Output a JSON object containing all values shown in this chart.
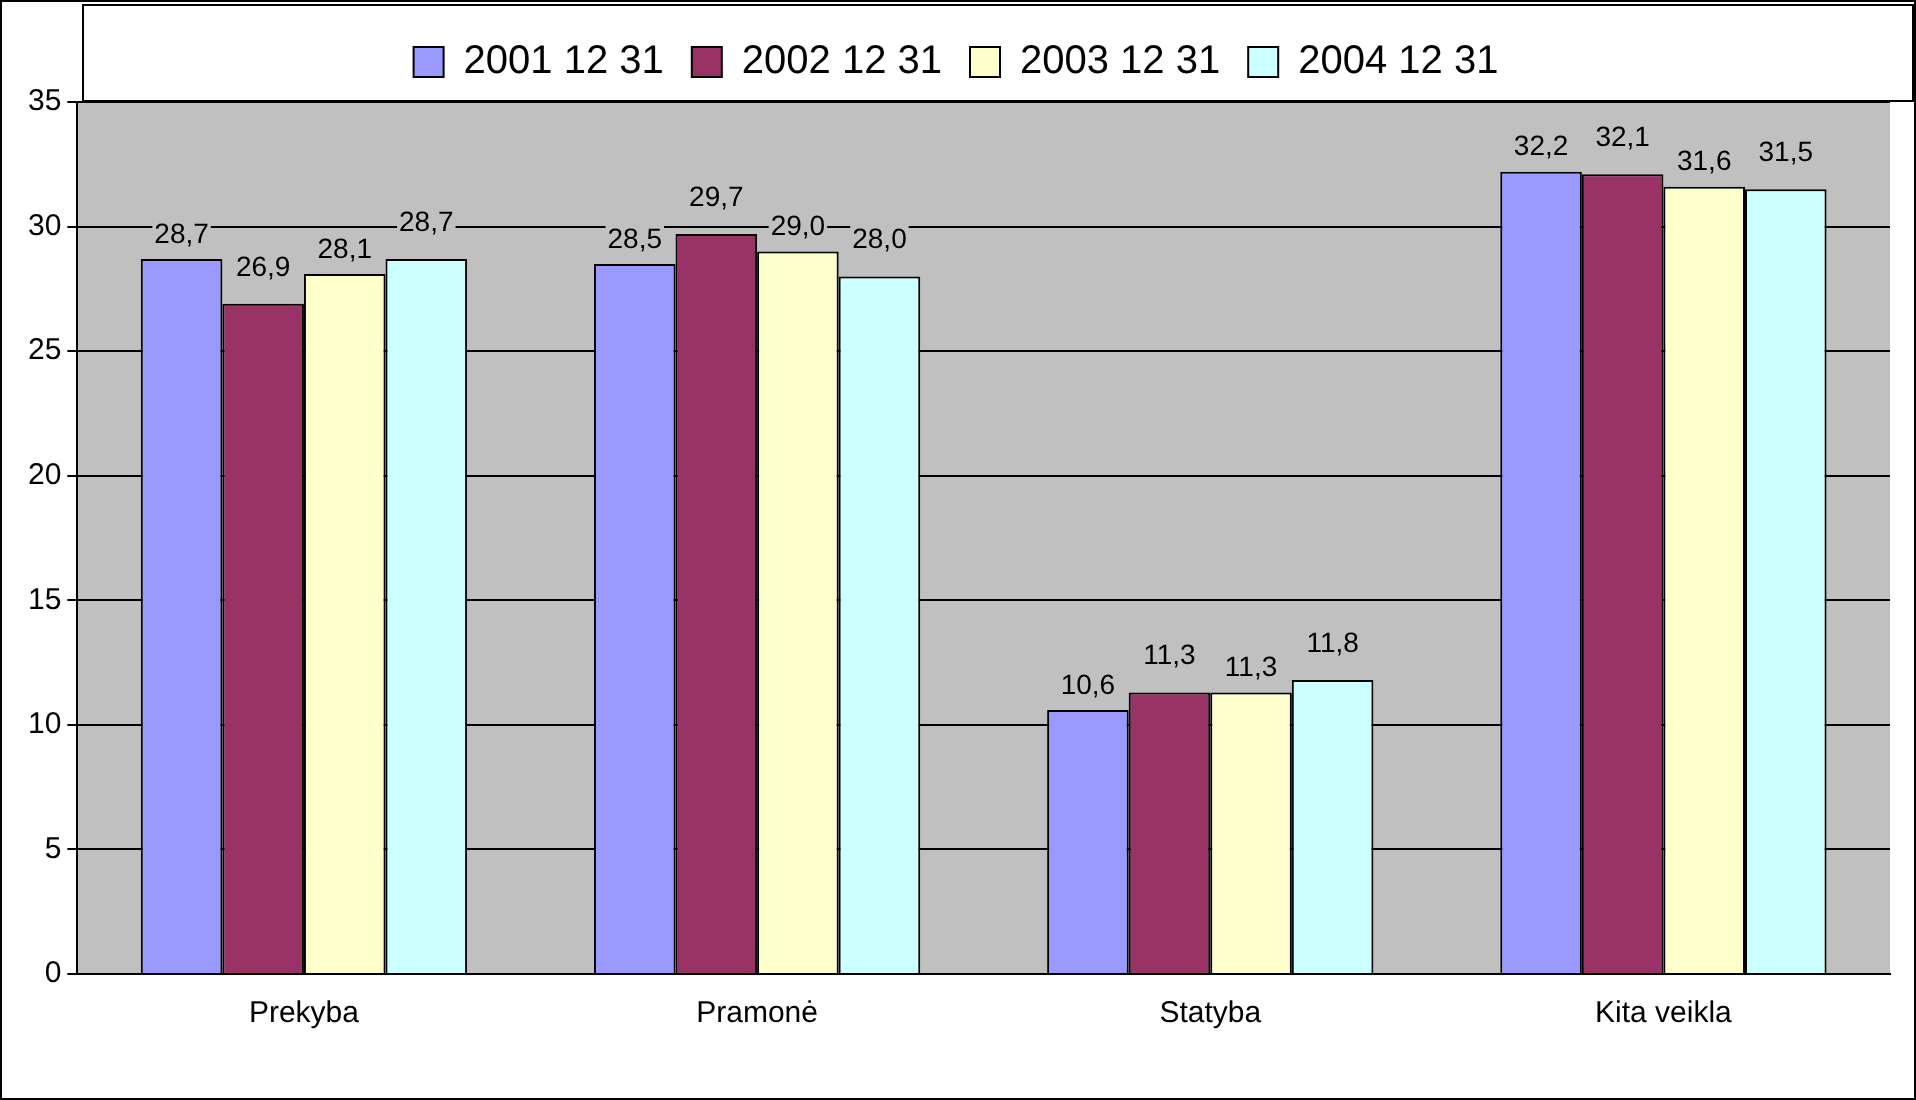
{
  "chart_data": {
    "type": "bar",
    "categories": [
      "Prekyba",
      "Pramonė",
      "Statyba",
      "Kita veikla"
    ],
    "series": [
      {
        "name": "2001 12 31",
        "color": "#9999ff",
        "values": [
          28.7,
          28.5,
          10.6,
          32.2
        ],
        "value_labels": [
          "28,7",
          "28,5",
          "10,6",
          "32,2"
        ]
      },
      {
        "name": "2002 12 31",
        "color": "#993366",
        "values": [
          26.9,
          29.7,
          11.3,
          32.1
        ],
        "value_labels": [
          "26,9",
          "29,7",
          "11,3",
          "32,1"
        ]
      },
      {
        "name": "2003 12 31",
        "color": "#ffffcc",
        "values": [
          28.1,
          29.0,
          11.3,
          31.6
        ],
        "value_labels": [
          "28,1",
          "29,0",
          "11,3",
          "31,6"
        ]
      },
      {
        "name": "2004 12 31",
        "color": "#ccffff",
        "values": [
          28.7,
          28.0,
          11.8,
          31.5
        ],
        "value_labels": [
          "28,7",
          "28,0",
          "11,8",
          "31,5"
        ]
      }
    ],
    "ylim": [
      0,
      35
    ],
    "yticks": [
      0,
      5,
      10,
      15,
      20,
      25,
      30,
      35
    ],
    "grid": "y",
    "legend": "top"
  }
}
